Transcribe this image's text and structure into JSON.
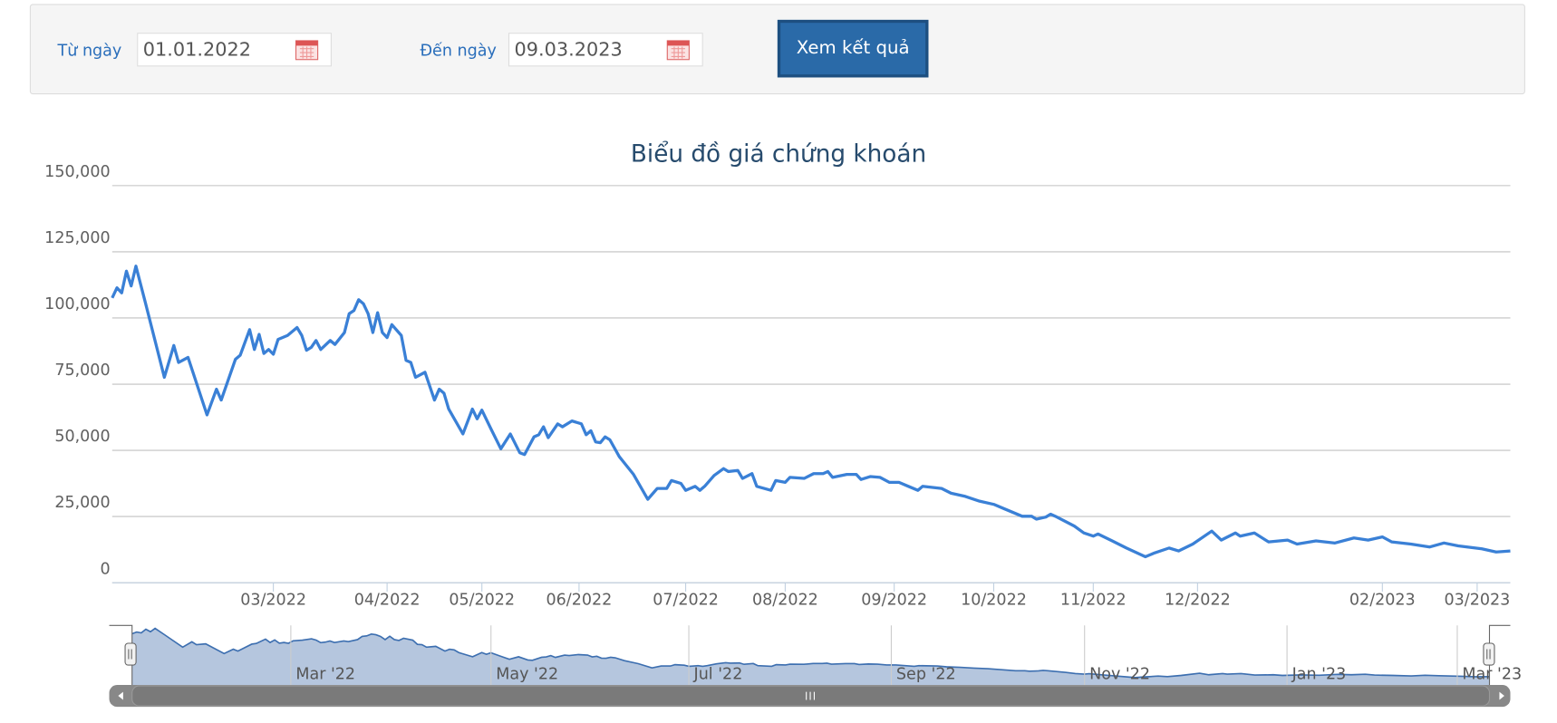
{
  "form": {
    "from_label": "Từ ngày",
    "from_value": "01.01.2022",
    "to_label": "Đến ngày",
    "to_value": "09.03.2023",
    "button": "Xem kết quả"
  },
  "chart_data": {
    "type": "line",
    "title": "Biểu đồ giá chứng khoán",
    "xlim": [
      0,
      295
    ],
    "xticks": [
      {
        "value": 34,
        "label": "03/2022"
      },
      {
        "value": 58,
        "label": "04/2022"
      },
      {
        "value": 78,
        "label": "05/2022"
      },
      {
        "value": 98.5,
        "label": "06/2022"
      },
      {
        "value": 121,
        "label": "07/2022"
      },
      {
        "value": 142,
        "label": "08/2022"
      },
      {
        "value": 165,
        "label": "09/2022"
      },
      {
        "value": 186,
        "label": "10/2022"
      },
      {
        "value": 207,
        "label": "11/2022"
      },
      {
        "value": 229,
        "label": "12/2022"
      },
      {
        "value": 268,
        "label": "02/2023"
      },
      {
        "value": 288,
        "label": "03/2023"
      }
    ],
    "ylim": [
      0,
      150000
    ],
    "yticks": [
      0,
      {
        "value": 25000,
        "label": "25,000"
      },
      {
        "value": 50000,
        "label": "50,000"
      },
      {
        "value": 75000,
        "label": "75,000"
      },
      {
        "value": 100000,
        "label": "100,000"
      },
      {
        "value": 125000,
        "label": "125,000"
      },
      {
        "value": 150000,
        "label": "150,000"
      }
    ],
    "grid": true,
    "series": [
      {
        "color": "#3a80d6",
        "x": [
          0,
          1,
          2,
          3,
          4,
          5,
          7,
          11,
          13,
          14,
          16,
          20,
          22,
          23,
          26,
          27,
          29,
          30,
          31,
          32,
          33,
          34,
          35,
          37,
          39,
          40,
          41,
          42,
          43,
          44,
          46,
          47,
          49,
          50,
          51,
          52,
          53,
          54,
          55,
          56,
          57,
          58,
          59,
          61,
          62,
          63,
          64,
          66,
          68,
          69,
          70,
          71,
          74,
          76,
          77,
          78,
          80,
          82,
          84,
          86,
          87,
          89,
          90,
          91,
          92,
          94,
          95,
          97,
          99,
          100,
          101,
          102,
          103,
          104,
          105,
          107,
          110,
          113,
          115,
          117,
          118,
          120,
          121,
          123,
          124,
          125,
          127,
          129,
          130,
          132,
          133,
          135,
          136,
          139,
          140,
          142,
          143,
          146,
          148,
          150,
          151,
          152,
          155,
          157,
          158,
          160,
          162,
          164,
          166,
          168,
          170,
          171,
          175,
          177,
          180,
          183,
          186,
          188,
          190,
          192,
          194,
          195,
          197,
          198,
          199,
          203,
          205,
          207,
          208,
          211,
          214,
          218,
          220,
          223,
          225,
          228,
          232,
          234,
          237,
          238,
          241,
          244,
          248,
          250,
          254,
          258,
          262,
          265,
          268,
          270,
          274,
          278,
          281,
          284,
          289,
          292,
          295
        ],
        "values": [
          107600,
          111400,
          109500,
          117700,
          112100,
          119600,
          105800,
          77600,
          89600,
          83200,
          85100,
          63400,
          73100,
          69000,
          84400,
          85900,
          95600,
          88100,
          93800,
          86600,
          88100,
          86300,
          91900,
          93400,
          96400,
          93400,
          87800,
          88900,
          91500,
          88100,
          91500,
          90000,
          94500,
          101600,
          102800,
          106900,
          105400,
          101600,
          94500,
          102000,
          94500,
          92600,
          97500,
          93400,
          84000,
          83200,
          77600,
          79500,
          69000,
          73100,
          71600,
          65600,
          56200,
          65600,
          61900,
          65200,
          57800,
          50600,
          56200,
          49100,
          48400,
          55100,
          55900,
          58900,
          54800,
          60000,
          58900,
          61100,
          60000,
          55900,
          57400,
          53200,
          52900,
          55100,
          54000,
          47600,
          40900,
          31500,
          35600,
          35600,
          38600,
          37500,
          34900,
          36400,
          34900,
          36400,
          40500,
          43100,
          42000,
          42400,
          39400,
          41200,
          36400,
          34900,
          38600,
          37900,
          39800,
          39400,
          41200,
          41200,
          42000,
          39800,
          40900,
          40900,
          39000,
          40100,
          39800,
          37900,
          37900,
          36400,
          34900,
          36400,
          35600,
          33800,
          32600,
          30800,
          29600,
          28100,
          26600,
          25100,
          25100,
          24000,
          24800,
          25900,
          25100,
          21400,
          18800,
          17600,
          18400,
          15800,
          13100,
          9800,
          11300,
          13100,
          12000,
          14600,
          19500,
          16100,
          18800,
          17600,
          18800,
          15400,
          16100,
          14600,
          15800,
          15000,
          16900,
          16100,
          17300,
          15400,
          14600,
          13500,
          15000,
          13900,
          12800,
          11600,
          12000
        ]
      }
    ]
  },
  "navigator": {
    "xticks": [
      {
        "value": 34.5,
        "label": "Mar '22"
      },
      {
        "value": 78,
        "label": "May '22"
      },
      {
        "value": 121,
        "label": "Jul '22"
      },
      {
        "value": 165,
        "label": "Sep '22"
      },
      {
        "value": 207,
        "label": "Nov '22"
      },
      {
        "value": 251,
        "label": "Jan '23"
      },
      {
        "value": 288,
        "label": "Mar '23"
      }
    ]
  }
}
